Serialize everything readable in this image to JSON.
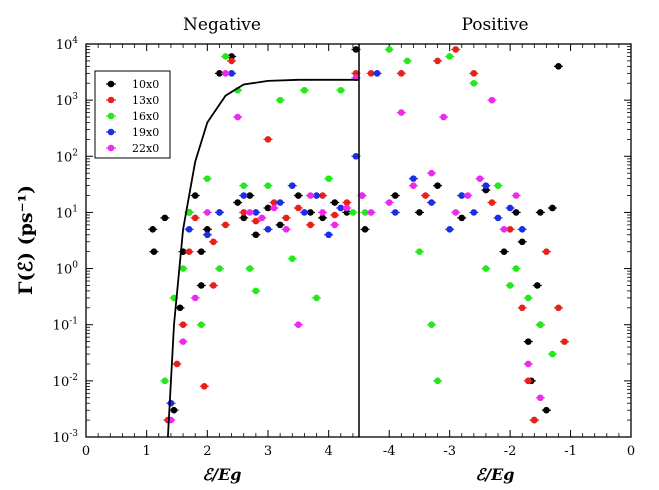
{
  "chart_data": {
    "type": "scatter",
    "ylabel": "Γ(ℰ) (ps⁻¹)",
    "yscale": "log",
    "ylim": [
      0.001,
      10000
    ],
    "y_ticks": [
      {
        "v": 0.001,
        "b": "10",
        "e": "-3"
      },
      {
        "v": 0.01,
        "b": "10",
        "e": "-2"
      },
      {
        "v": 0.1,
        "b": "10",
        "e": "-1"
      },
      {
        "v": 1,
        "b": "10",
        "e": "0"
      },
      {
        "v": 10,
        "b": "10",
        "e": "1"
      },
      {
        "v": 100,
        "b": "10",
        "e": "2"
      },
      {
        "v": 1000,
        "b": "10",
        "e": "3"
      },
      {
        "v": 10000,
        "b": "10",
        "e": "4"
      }
    ],
    "legend_position": "upper-left of left panel",
    "series_colors": {
      "10x0": "#000000",
      "13x0": "#e8201a",
      "16x0": "#22e81c",
      "19x0": "#1c2de8",
      "22x0": "#ef28ef"
    },
    "panels": [
      {
        "title": "Negative",
        "xlabel": "ℰ/Eg",
        "xlim": [
          0,
          4.5
        ],
        "x_ticks": [
          "0",
          "1",
          "2",
          "3",
          "4"
        ],
        "x_tick_values": [
          0,
          1,
          2,
          3,
          4
        ],
        "fit_curve": {
          "color": "#000000",
          "x": [
            1.35,
            1.45,
            1.6,
            1.8,
            2.0,
            2.3,
            2.6,
            3.0,
            3.5,
            4.0,
            4.5
          ],
          "y": [
            0.001,
            0.1,
            5,
            80,
            400,
            1200,
            1900,
            2200,
            2300,
            2300,
            2300
          ]
        },
        "series": [
          {
            "name": "10x0",
            "points": [
              [
                1.1,
                5
              ],
              [
                1.12,
                2
              ],
              [
                1.3,
                8
              ],
              [
                1.45,
                0.003
              ],
              [
                1.55,
                0.2
              ],
              [
                1.6,
                2
              ],
              [
                1.7,
                10
              ],
              [
                1.8,
                20
              ],
              [
                1.9,
                2
              ],
              [
                1.9,
                0.5
              ],
              [
                2.0,
                5
              ],
              [
                2.2,
                3000
              ],
              [
                2.4,
                6000
              ],
              [
                2.5,
                15
              ],
              [
                2.6,
                8
              ],
              [
                2.7,
                20
              ],
              [
                2.8,
                4
              ],
              [
                3.0,
                12
              ],
              [
                3.2,
                6
              ],
              [
                3.5,
                20
              ],
              [
                3.7,
                10
              ],
              [
                3.9,
                8
              ],
              [
                4.1,
                15
              ],
              [
                4.3,
                10
              ],
              [
                4.45,
                8000
              ]
            ]
          },
          {
            "name": "13x0",
            "points": [
              [
                1.35,
                0.002
              ],
              [
                1.5,
                0.02
              ],
              [
                1.6,
                0.1
              ],
              [
                1.7,
                2
              ],
              [
                1.8,
                8
              ],
              [
                1.95,
                0.008
              ],
              [
                2.1,
                3
              ],
              [
                2.1,
                0.5
              ],
              [
                2.2,
                10
              ],
              [
                2.3,
                6
              ],
              [
                2.4,
                5000
              ],
              [
                2.6,
                10
              ],
              [
                2.8,
                7
              ],
              [
                3.0,
                200
              ],
              [
                3.1,
                15
              ],
              [
                3.3,
                8
              ],
              [
                3.5,
                12
              ],
              [
                3.7,
                6
              ],
              [
                3.9,
                20
              ],
              [
                4.1,
                9
              ],
              [
                4.3,
                15
              ],
              [
                4.45,
                3000
              ]
            ]
          },
          {
            "name": "16x0",
            "points": [
              [
                1.3,
                0.01
              ],
              [
                1.45,
                0.3
              ],
              [
                1.6,
                1
              ],
              [
                1.7,
                10
              ],
              [
                1.9,
                0.1
              ],
              [
                2.0,
                40
              ],
              [
                2.2,
                1
              ],
              [
                2.3,
                6000
              ],
              [
                2.5,
                1500
              ],
              [
                2.6,
                30
              ],
              [
                2.7,
                1
              ],
              [
                2.8,
                0.4
              ],
              [
                3.0,
                30
              ],
              [
                3.2,
                1000
              ],
              [
                3.4,
                1.5
              ],
              [
                3.6,
                1500
              ],
              [
                3.8,
                0.3
              ],
              [
                4.0,
                40
              ],
              [
                4.2,
                1500
              ],
              [
                4.4,
                10
              ]
            ]
          },
          {
            "name": "19x0",
            "points": [
              [
                1.4,
                0.004
              ],
              [
                1.7,
                5
              ],
              [
                2.0,
                4
              ],
              [
                2.2,
                10
              ],
              [
                2.4,
                3000
              ],
              [
                2.6,
                20
              ],
              [
                2.8,
                10
              ],
              [
                3.0,
                5
              ],
              [
                3.2,
                15
              ],
              [
                3.4,
                30
              ],
              [
                3.6,
                10
              ],
              [
                3.8,
                20
              ],
              [
                4.0,
                4
              ],
              [
                4.2,
                12
              ],
              [
                4.45,
                100
              ]
            ]
          },
          {
            "name": "22x0",
            "points": [
              [
                1.4,
                0.002
              ],
              [
                1.6,
                0.05
              ],
              [
                1.8,
                0.3
              ],
              [
                2.0,
                10
              ],
              [
                2.3,
                3000
              ],
              [
                2.5,
                500
              ],
              [
                2.7,
                10
              ],
              [
                2.9,
                8
              ],
              [
                3.1,
                12
              ],
              [
                3.3,
                5
              ],
              [
                3.5,
                0.1
              ],
              [
                3.7,
                20
              ],
              [
                3.9,
                10
              ],
              [
                4.1,
                6
              ],
              [
                4.3,
                12
              ],
              [
                4.45,
                2500
              ]
            ]
          }
        ]
      },
      {
        "title": "Positive",
        "xlabel": "ℰ/Eg",
        "xlim": [
          -4.5,
          0
        ],
        "x_ticks": [
          "-4",
          "-3",
          "-2",
          "-1",
          "0"
        ],
        "x_tick_values": [
          -4,
          -3,
          -2,
          -1,
          0
        ],
        "series": [
          {
            "name": "10x0",
            "points": [
              [
                -4.4,
                5
              ],
              [
                -3.9,
                20
              ],
              [
                -3.5,
                10
              ],
              [
                -3.2,
                30
              ],
              [
                -2.8,
                8
              ],
              [
                -2.4,
                25
              ],
              [
                -2.1,
                2
              ],
              [
                -1.9,
                10
              ],
              [
                -1.8,
                3
              ],
              [
                -1.7,
                0.05
              ],
              [
                -1.65,
                0.01
              ],
              [
                -1.6,
                0.002
              ],
              [
                -1.55,
                0.5
              ],
              [
                -1.5,
                10
              ],
              [
                -1.4,
                0.003
              ],
              [
                -1.3,
                12
              ],
              [
                -1.2,
                4000
              ]
            ]
          },
          {
            "name": "13x0",
            "points": [
              [
                -4.3,
                3000
              ],
              [
                -3.8,
                3000
              ],
              [
                -3.4,
                20
              ],
              [
                -3.2,
                5000
              ],
              [
                -2.9,
                8000
              ],
              [
                -2.6,
                3000
              ],
              [
                -2.3,
                15
              ],
              [
                -2.0,
                5
              ],
              [
                -1.8,
                0.2
              ],
              [
                -1.7,
                0.01
              ],
              [
                -1.6,
                0.002
              ],
              [
                -1.5,
                0.1
              ],
              [
                -1.4,
                2
              ],
              [
                -1.2,
                0.2
              ],
              [
                -1.1,
                0.05
              ]
            ]
          },
          {
            "name": "16x0",
            "points": [
              [
                -4.4,
                10
              ],
              [
                -4.0,
                8000
              ],
              [
                -3.7,
                5000
              ],
              [
                -3.5,
                2
              ],
              [
                -3.3,
                0.1
              ],
              [
                -3.2,
                0.01
              ],
              [
                -3.0,
                6000
              ],
              [
                -2.8,
                20
              ],
              [
                -2.6,
                2000
              ],
              [
                -2.4,
                1
              ],
              [
                -2.2,
                30
              ],
              [
                -2.0,
                0.5
              ],
              [
                -1.9,
                1
              ],
              [
                -1.7,
                0.3
              ],
              [
                -1.5,
                0.1
              ],
              [
                -1.3,
                0.03
              ]
            ]
          },
          {
            "name": "19x0",
            "points": [
              [
                -4.45,
                20
              ],
              [
                -4.2,
                3000
              ],
              [
                -3.9,
                10
              ],
              [
                -3.6,
                40
              ],
              [
                -3.3,
                15
              ],
              [
                -3.0,
                5
              ],
              [
                -2.8,
                20
              ],
              [
                -2.6,
                10
              ],
              [
                -2.4,
                30
              ],
              [
                -2.2,
                8
              ],
              [
                -2.0,
                12
              ],
              [
                -1.8,
                5
              ]
            ]
          },
          {
            "name": "22x0",
            "points": [
              [
                -4.45,
                20
              ],
              [
                -4.3,
                10
              ],
              [
                -4.0,
                15
              ],
              [
                -3.8,
                600
              ],
              [
                -3.6,
                30
              ],
              [
                -3.3,
                50
              ],
              [
                -3.1,
                500
              ],
              [
                -2.9,
                10
              ],
              [
                -2.7,
                20
              ],
              [
                -2.5,
                40
              ],
              [
                -2.3,
                1000
              ],
              [
                -2.1,
                5
              ],
              [
                -1.9,
                20
              ],
              [
                -1.7,
                0.02
              ],
              [
                -1.5,
                0.005
              ]
            ]
          }
        ]
      }
    ]
  }
}
